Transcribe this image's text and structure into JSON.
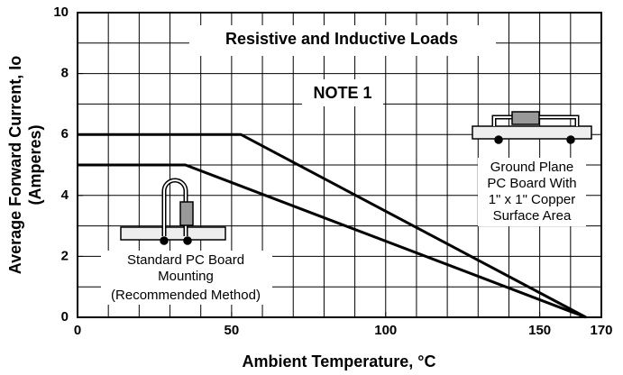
{
  "chart_data": {
    "type": "line",
    "title": "Resistive and Inductive Loads",
    "note": "NOTE 1",
    "xlabel": "Ambient Temperature, °C",
    "ylabel": [
      "Average Forward Current, Io",
      "(Amperes)"
    ],
    "annotations": {
      "ground_plane": [
        "Ground Plane",
        "PC Board With",
        "1\" x 1\" Copper",
        "Surface Area"
      ],
      "standard": [
        "Standard PC Board",
        "Mounting",
        "(Recommended Method)"
      ]
    },
    "series": [
      {
        "x": [
          0,
          53,
          165
        ],
        "values": [
          6,
          6,
          0
        ],
        "color": "#000000"
      },
      {
        "x": [
          0,
          35,
          165
        ],
        "values": [
          5,
          5,
          0
        ],
        "color": "#000000"
      }
    ],
    "xlim": [
      0,
      170
    ],
    "ylim": [
      0,
      10
    ],
    "xticks": [
      0,
      50,
      100,
      150,
      170
    ],
    "yticks": [
      0,
      2,
      4,
      6,
      8,
      10
    ],
    "xgrid": [
      10,
      20,
      30,
      40,
      50,
      60,
      70,
      80,
      90,
      100,
      110,
      120,
      130,
      140,
      150,
      160
    ],
    "ygrid": [
      1,
      2,
      3,
      4,
      5,
      6,
      7,
      8,
      9
    ],
    "grid": true
  }
}
